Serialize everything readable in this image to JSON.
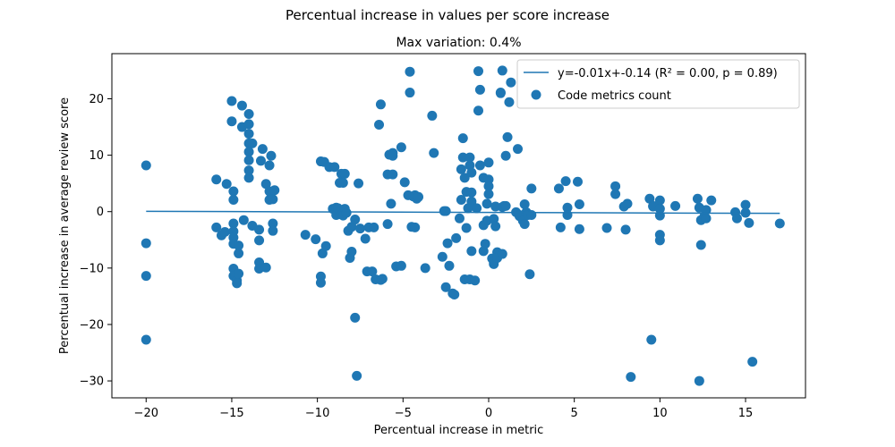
{
  "chart_data": {
    "type": "scatter",
    "suptitle": "Percentual increase in values per score increase",
    "title": "Max variation: 0.4%",
    "xlabel": "Percentual increase in metric",
    "ylabel": "Percentual increase in average review score",
    "xlim": [
      -22,
      18.5
    ],
    "ylim": [
      -33,
      28
    ],
    "xticks": [
      -20,
      -15,
      -10,
      -5,
      0,
      5,
      10,
      15
    ],
    "yticks": [
      -30,
      -20,
      -10,
      0,
      10,
      20
    ],
    "grid": false,
    "legend_position": "top-right",
    "colors": {
      "series": "#1f77b4"
    },
    "fit_line": {
      "name": "y=-0.01x+-0.14 (R² = 0.00, p = 0.89)",
      "x": [
        -20,
        17
      ],
      "y": [
        0.06,
        -0.31
      ]
    },
    "series": [
      {
        "name": "Code metrics count",
        "points": [
          [
            -20,
            8.2
          ],
          [
            -20,
            -5.6
          ],
          [
            -20,
            -11.4
          ],
          [
            -20,
            -22.7
          ],
          [
            -15.9,
            5.7
          ],
          [
            -15.9,
            -2.8
          ],
          [
            -15.6,
            -4.2
          ],
          [
            -15.4,
            -3.6
          ],
          [
            -15.3,
            4.9
          ],
          [
            -15.0,
            19.6
          ],
          [
            -15.0,
            16.0
          ],
          [
            -14.9,
            3.6
          ],
          [
            -14.9,
            2.1
          ],
          [
            -14.9,
            -2.1
          ],
          [
            -14.9,
            -3.5
          ],
          [
            -14.9,
            -4.6
          ],
          [
            -14.9,
            -5.7
          ],
          [
            -14.9,
            -10.1
          ],
          [
            -14.9,
            -11.4
          ],
          [
            -14.7,
            -12.2
          ],
          [
            -14.7,
            -12.7
          ],
          [
            -14.6,
            -7.4
          ],
          [
            -14.6,
            -6.0
          ],
          [
            -14.6,
            -11.0
          ],
          [
            -14.4,
            18.8
          ],
          [
            -14.4,
            15.0
          ],
          [
            -14.3,
            -1.5
          ],
          [
            -14.0,
            17.3
          ],
          [
            -14.0,
            15.5
          ],
          [
            -14.0,
            13.8
          ],
          [
            -14.0,
            12.1
          ],
          [
            -14.0,
            10.6
          ],
          [
            -14.0,
            9.1
          ],
          [
            -14.0,
            7.3
          ],
          [
            -14.0,
            6.0
          ],
          [
            -13.8,
            12.1
          ],
          [
            -13.8,
            -2.5
          ],
          [
            -13.4,
            -3.2
          ],
          [
            -13.4,
            -5.1
          ],
          [
            -13.4,
            -9.0
          ],
          [
            -13.4,
            -10.1
          ],
          [
            -13.3,
            9.0
          ],
          [
            -13.2,
            11.1
          ],
          [
            -13.0,
            -9.9
          ],
          [
            -13.0,
            4.9
          ],
          [
            -12.8,
            8.2
          ],
          [
            -12.8,
            3.6
          ],
          [
            -12.8,
            2.1
          ],
          [
            -12.7,
            9.9
          ],
          [
            -12.6,
            -2.1
          ],
          [
            -12.6,
            -3.4
          ],
          [
            -12.6,
            2.2
          ],
          [
            -12.5,
            3.8
          ],
          [
            -10.7,
            -4.1
          ],
          [
            -10.1,
            -4.9
          ],
          [
            -9.8,
            8.9
          ],
          [
            -9.8,
            -11.5
          ],
          [
            -9.8,
            -12.6
          ],
          [
            -9.7,
            -7.4
          ],
          [
            -9.6,
            8.8
          ],
          [
            -9.5,
            -6.1
          ],
          [
            -9.3,
            7.9
          ],
          [
            -9.1,
            0.5
          ],
          [
            -9.0,
            7.9
          ],
          [
            -8.9,
            0.7
          ],
          [
            -8.9,
            -0.6
          ],
          [
            -8.8,
            0.6
          ],
          [
            -8.7,
            5.1
          ],
          [
            -8.6,
            6.7
          ],
          [
            -8.6,
            -0.5
          ],
          [
            -8.5,
            -0.7
          ],
          [
            -8.5,
            5.1
          ],
          [
            -8.4,
            6.7
          ],
          [
            -8.4,
            0.5
          ],
          [
            -8.3,
            -0.2
          ],
          [
            -8.2,
            -3.4
          ],
          [
            -8.1,
            -8.2
          ],
          [
            -8.0,
            -7.1
          ],
          [
            -8.0,
            -2.7
          ],
          [
            -7.8,
            -1.4
          ],
          [
            -7.8,
            -18.8
          ],
          [
            -7.7,
            -29.1
          ],
          [
            -7.6,
            5.0
          ],
          [
            -7.5,
            -3.0
          ],
          [
            -7.2,
            -4.8
          ],
          [
            -7.1,
            -10.6
          ],
          [
            -7.0,
            -2.8
          ],
          [
            -6.8,
            -10.6
          ],
          [
            -6.7,
            -2.8
          ],
          [
            -6.6,
            -12.0
          ],
          [
            -6.4,
            15.4
          ],
          [
            -6.3,
            19.0
          ],
          [
            -6.3,
            -12.1
          ],
          [
            -6.2,
            -11.9
          ],
          [
            -5.9,
            6.6
          ],
          [
            -5.9,
            -2.2
          ],
          [
            -5.8,
            10.1
          ],
          [
            -5.7,
            1.4
          ],
          [
            -5.6,
            10.4
          ],
          [
            -5.6,
            6.6
          ],
          [
            -5.6,
            9.9
          ],
          [
            -5.4,
            -9.7
          ],
          [
            -5.1,
            -9.6
          ],
          [
            -5.1,
            11.4
          ],
          [
            -4.9,
            5.2
          ],
          [
            -4.7,
            2.9
          ],
          [
            -4.6,
            24.8
          ],
          [
            -4.6,
            21.1
          ],
          [
            -4.5,
            -2.7
          ],
          [
            -4.4,
            2.7
          ],
          [
            -4.3,
            -2.8
          ],
          [
            -4.3,
            2.9
          ],
          [
            -4.2,
            2.3
          ],
          [
            -4.1,
            2.6
          ],
          [
            -3.7,
            -10.0
          ],
          [
            -3.3,
            17.0
          ],
          [
            -3.2,
            10.4
          ],
          [
            -2.7,
            -8.0
          ],
          [
            -2.6,
            0.1
          ],
          [
            -2.5,
            -13.4
          ],
          [
            -2.5,
            0.1
          ],
          [
            -2.4,
            -5.6
          ],
          [
            -2.3,
            -9.6
          ],
          [
            -2.1,
            -14.5
          ],
          [
            -2.0,
            -14.7
          ],
          [
            -1.9,
            -4.7
          ],
          [
            -1.7,
            -1.2
          ],
          [
            -1.6,
            2.1
          ],
          [
            -1.6,
            7.5
          ],
          [
            -1.5,
            13.0
          ],
          [
            -1.5,
            9.6
          ],
          [
            -1.4,
            6.0
          ],
          [
            -1.4,
            -12.0
          ],
          [
            -1.3,
            -2.9
          ],
          [
            -1.3,
            3.5
          ],
          [
            -1.2,
            0.6
          ],
          [
            -1.1,
            -12.0
          ],
          [
            -1.1,
            8.2
          ],
          [
            -1.1,
            9.6
          ],
          [
            -1.0,
            3.4
          ],
          [
            -1.0,
            6.9
          ],
          [
            -1.0,
            1.8
          ],
          [
            -1.0,
            -7.0
          ],
          [
            -0.8,
            -12.2
          ],
          [
            -0.7,
            0.6
          ],
          [
            -0.6,
            24.9
          ],
          [
            -0.6,
            17.9
          ],
          [
            -0.5,
            21.6
          ],
          [
            -0.5,
            8.2
          ],
          [
            -0.3,
            -2.4
          ],
          [
            -0.3,
            -7.0
          ],
          [
            -0.3,
            6.0
          ],
          [
            -0.2,
            -5.7
          ],
          [
            -0.1,
            -1.6
          ],
          [
            -0.1,
            1.4
          ],
          [
            0.0,
            5.7
          ],
          [
            0.0,
            4.5
          ],
          [
            0.0,
            3.1
          ],
          [
            0.0,
            8.7
          ],
          [
            0.2,
            -8.3
          ],
          [
            0.3,
            -9.3
          ],
          [
            0.3,
            -8.9
          ],
          [
            0.3,
            -1.3
          ],
          [
            0.4,
            -2.6
          ],
          [
            0.4,
            0.9
          ],
          [
            0.5,
            -7.2
          ],
          [
            0.5,
            -8.2
          ],
          [
            0.7,
            21.1
          ],
          [
            0.7,
            21.0
          ],
          [
            0.8,
            -7.5
          ],
          [
            0.8,
            0.8
          ],
          [
            0.8,
            25.0
          ],
          [
            0.9,
            1.0
          ],
          [
            1.0,
            1.0
          ],
          [
            1.0,
            9.9
          ],
          [
            1.1,
            13.2
          ],
          [
            1.2,
            19.4
          ],
          [
            1.3,
            22.9
          ],
          [
            1.6,
            -0.1
          ],
          [
            1.7,
            11.1
          ],
          [
            1.8,
            -0.8
          ],
          [
            1.8,
            -0.6
          ],
          [
            2.0,
            -1.6
          ],
          [
            2.1,
            1.3
          ],
          [
            2.1,
            -2.2
          ],
          [
            2.2,
            -0.1
          ],
          [
            2.3,
            -0.6
          ],
          [
            2.4,
            -11.1
          ],
          [
            2.5,
            4.1
          ],
          [
            2.5,
            -0.6
          ],
          [
            4.1,
            4.1
          ],
          [
            4.2,
            -2.8
          ],
          [
            4.5,
            5.4
          ],
          [
            4.6,
            0.7
          ],
          [
            4.6,
            -0.6
          ],
          [
            5.2,
            5.3
          ],
          [
            5.3,
            1.3
          ],
          [
            5.3,
            -3.1
          ],
          [
            6.9,
            -2.9
          ],
          [
            7.4,
            4.5
          ],
          [
            7.4,
            3.1
          ],
          [
            7.9,
            0.9
          ],
          [
            8.0,
            -3.2
          ],
          [
            8.1,
            1.4
          ],
          [
            8.3,
            -29.3
          ],
          [
            9.4,
            2.3
          ],
          [
            9.5,
            -22.7
          ],
          [
            9.6,
            1.0
          ],
          [
            9.6,
            0.9
          ],
          [
            10.0,
            2.0
          ],
          [
            10.0,
            0.5
          ],
          [
            10.0,
            -0.7
          ],
          [
            10.0,
            -4.1
          ],
          [
            10.0,
            -5.1
          ],
          [
            10.9,
            1.0
          ],
          [
            12.2,
            2.3
          ],
          [
            12.3,
            -30.0
          ],
          [
            12.3,
            0.7
          ],
          [
            12.4,
            -5.9
          ],
          [
            12.4,
            -1.5
          ],
          [
            12.6,
            -0.8
          ],
          [
            12.7,
            0.3
          ],
          [
            12.7,
            -1.2
          ],
          [
            13.0,
            2.0
          ],
          [
            14.4,
            -0.1
          ],
          [
            14.5,
            -1.2
          ],
          [
            15.0,
            1.2
          ],
          [
            15.0,
            -0.2
          ],
          [
            15.2,
            -2.0
          ],
          [
            15.4,
            -26.6
          ],
          [
            17.0,
            -2.1
          ]
        ]
      }
    ]
  }
}
